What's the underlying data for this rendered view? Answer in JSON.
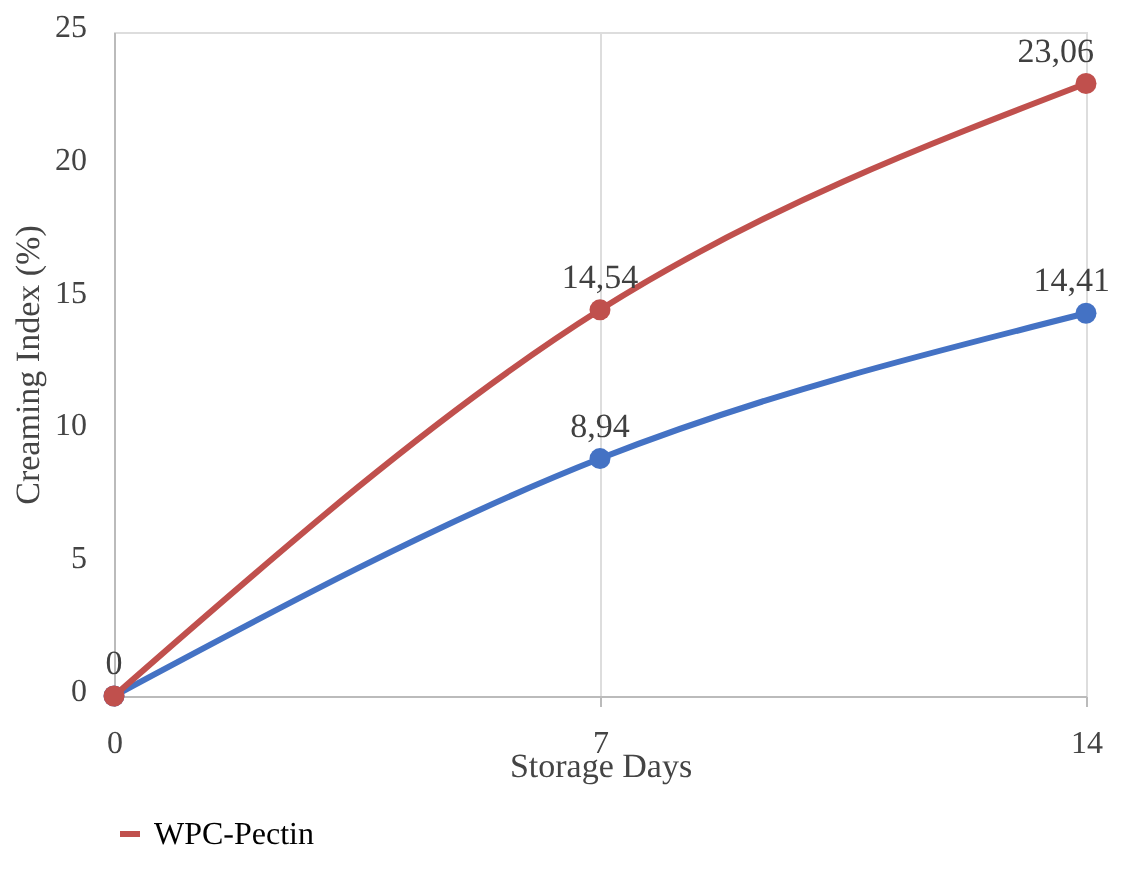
{
  "chart_data": {
    "type": "line",
    "xlabel": "Storage Days",
    "ylabel": "Creaming Index (%)",
    "x": [
      0,
      7,
      14
    ],
    "xlim": [
      0,
      14
    ],
    "xticks": [
      0,
      7,
      14
    ],
    "ylim": [
      0,
      25
    ],
    "yticks": [
      0,
      5,
      10,
      15,
      20,
      25
    ],
    "grid": "x",
    "legend": "bottom",
    "marker": "circle",
    "line_style": "solid",
    "series": [
      {
        "color": "#4472c4",
        "values": [
          0,
          8.94,
          14.41
        ],
        "value_labels": [
          null,
          "8,94",
          "14,41"
        ]
      },
      {
        "name": "WPC-Pectin",
        "color": "#c0504d",
        "values": [
          0,
          14.54,
          23.06
        ],
        "value_labels": [
          "0",
          "14,54",
          "23,06"
        ]
      }
    ]
  }
}
